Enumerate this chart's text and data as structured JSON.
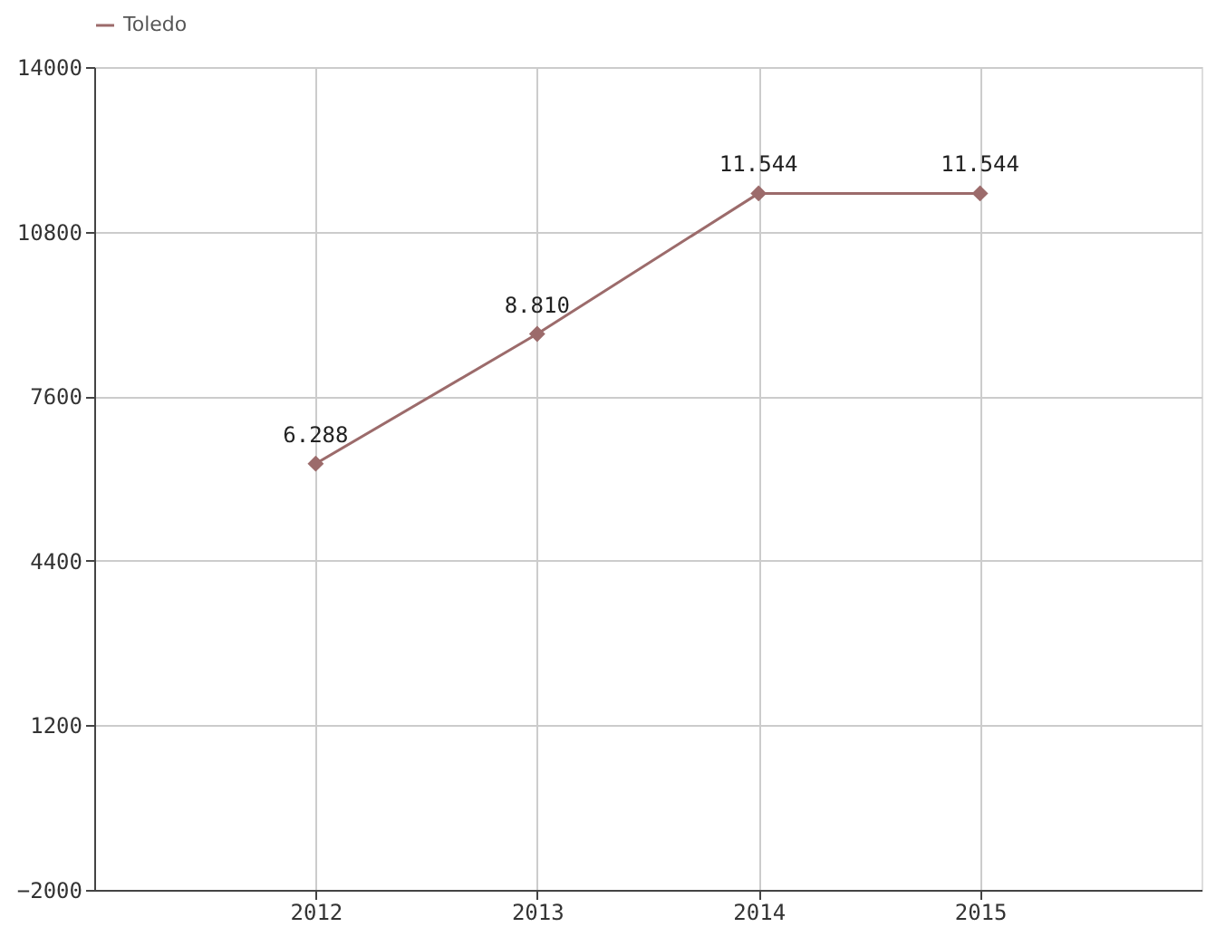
{
  "chart_data": {
    "type": "line",
    "categories": [
      "2012",
      "2013",
      "2014",
      "2015"
    ],
    "series": [
      {
        "name": "Toledo",
        "color": "#9c6b6b",
        "values": [
          6288,
          8810,
          11544,
          11544
        ],
        "value_labels": [
          "6.288",
          "8.810",
          "11.544",
          "11.544"
        ]
      }
    ],
    "ylim": [
      -2000,
      14000
    ],
    "yticks": [
      -2000,
      1200,
      4400,
      7600,
      10800,
      14000
    ],
    "grid": true,
    "legend": "top left",
    "marker": "diamond",
    "line_style": "solid"
  }
}
